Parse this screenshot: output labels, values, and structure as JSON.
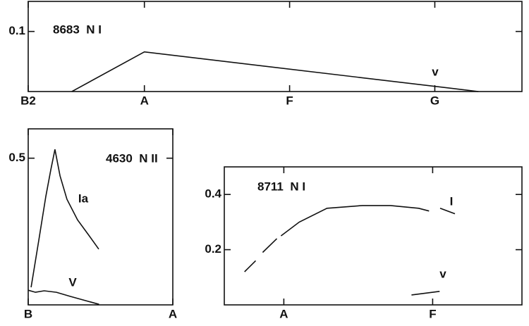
{
  "chart_data": [
    {
      "type": "line",
      "title": "8683  N I",
      "xlim": [
        2,
        36
      ],
      "xticks": [
        {
          "value": 2,
          "label": "B2"
        },
        {
          "value": 10,
          "label": "A"
        },
        {
          "value": 20,
          "label": "F"
        },
        {
          "value": 30,
          "label": "G"
        }
      ],
      "ylim": [
        0,
        0.15
      ],
      "yticks": [
        0.1
      ],
      "series": [
        {
          "name": "v",
          "color": "#111111",
          "x": [
            5,
            10,
            33
          ],
          "values": [
            0,
            0.066,
            0
          ]
        }
      ]
    },
    {
      "type": "line",
      "title": "4630  N II",
      "xlim": [
        0,
        10
      ],
      "xticks": [
        {
          "value": 0,
          "label": "B"
        },
        {
          "value": 10,
          "label": "A"
        }
      ],
      "ylim": [
        0,
        0.6
      ],
      "yticks": [
        0.5
      ],
      "series": [
        {
          "name": "Ia",
          "color": "#111111",
          "x": [
            0.2,
            0.73,
            1.22,
            1.56,
            1.85,
            2.2,
            2.68,
            3.41,
            4.15,
            4.88
          ],
          "values": [
            0.06,
            0.22,
            0.37,
            0.46,
            0.53,
            0.44,
            0.36,
            0.29,
            0.24,
            0.19
          ]
        },
        {
          "name": "V",
          "color": "#111111",
          "x": [
            0,
            0.5,
            1.1,
            1.95,
            2.9,
            4.9
          ],
          "values": [
            0.05,
            0.043,
            0.048,
            0.043,
            0.029,
            0.002
          ]
        }
      ]
    },
    {
      "type": "line",
      "title": "8711  N I",
      "xlim": [
        6,
        26
      ],
      "xticks": [
        {
          "value": 10,
          "label": "A"
        },
        {
          "value": 20,
          "label": "F"
        }
      ],
      "ylim": [
        0,
        0.5
      ],
      "yticks": [
        0.2,
        0.4
      ],
      "series": [
        {
          "name": "I",
          "color": "#111111",
          "x": [
            7.36,
            8.11,
            8.5,
            8.58,
            9.53,
            9.7,
            9.81,
            11.04,
            12.9,
            15.28,
            17.17,
            19.06,
            19.76,
            20.1,
            20.5,
            21.5
          ],
          "values": [
            0.12,
            0.16,
            null,
            0.19,
            0.24,
            null,
            0.25,
            0.3,
            0.35,
            0.36,
            0.36,
            0.35,
            0.34,
            null,
            0.35,
            0.33
          ]
        },
        {
          "name": "v",
          "color": "#111111",
          "x": [
            18.58,
            20.47
          ],
          "values": [
            0.036,
            0.049
          ]
        }
      ]
    }
  ]
}
